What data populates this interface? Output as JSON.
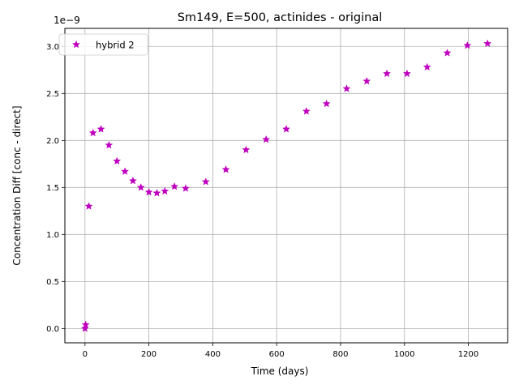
{
  "chart_data": {
    "type": "scatter",
    "title": "Sm149, E=500, actinides - original",
    "xlabel": "Time (days)",
    "ylabel": "Concentration Diff [conc - direct]",
    "offset_label": "1e−9",
    "xlim": [
      -63,
      1323
    ],
    "ylim": [
      -0.152,
      3.192
    ],
    "xticks": [
      0,
      200,
      400,
      600,
      800,
      1000,
      1200
    ],
    "xtick_labels": [
      "0",
      "200",
      "400",
      "600",
      "800",
      "1000",
      "1200"
    ],
    "yticks": [
      0.0,
      0.5,
      1.0,
      1.5,
      2.0,
      2.5,
      3.0
    ],
    "ytick_labels": [
      "0.0",
      "0.5",
      "1.0",
      "1.5",
      "2.0",
      "2.5",
      "3.0"
    ],
    "grid": true,
    "legend_position": "upper-left",
    "marker_color": "#bf00bf",
    "series": [
      {
        "name": "hybrid 2",
        "marker": "star",
        "x": [
          0,
          2,
          12,
          25,
          50,
          75,
          100,
          125,
          150,
          175,
          200,
          225,
          250,
          280,
          315,
          378,
          441,
          504,
          567,
          630,
          693,
          756,
          819,
          882,
          945,
          1008,
          1071,
          1134,
          1197,
          1260
        ],
        "y": [
          0.0,
          0.04,
          1.3,
          2.08,
          2.12,
          1.95,
          1.78,
          1.67,
          1.57,
          1.5,
          1.45,
          1.44,
          1.46,
          1.51,
          1.49,
          1.56,
          1.69,
          1.9,
          2.01,
          2.12,
          2.31,
          2.39,
          2.55,
          2.63,
          2.71,
          2.71,
          2.78,
          2.93,
          3.01,
          3.03
        ]
      }
    ]
  }
}
